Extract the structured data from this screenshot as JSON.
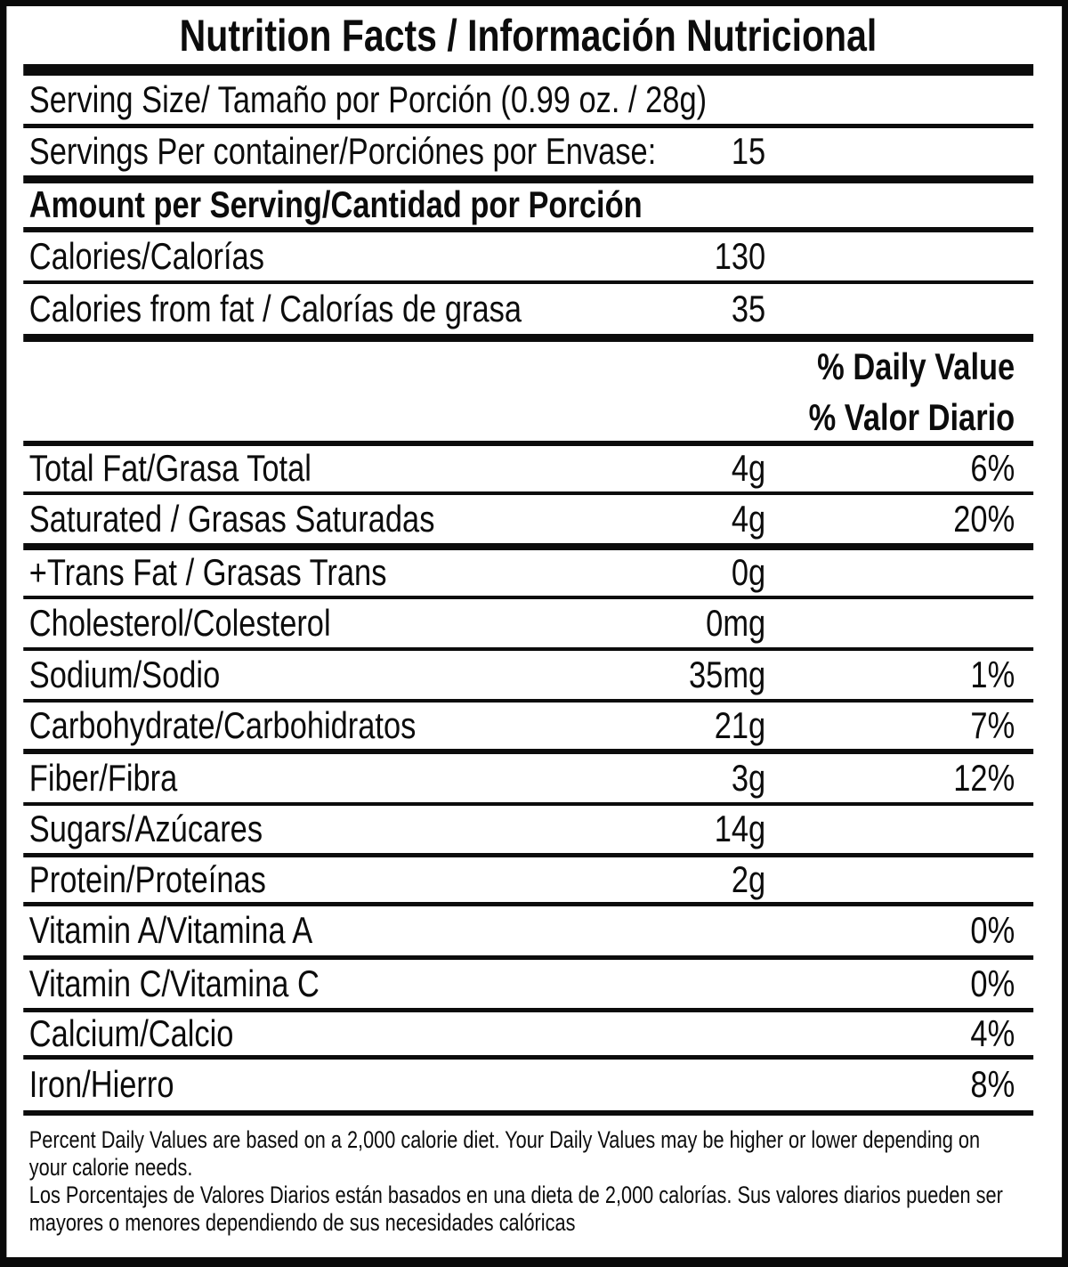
{
  "label": {
    "title": "Nutrition Facts / Información Nutricional",
    "serving_size": "Serving Size/ Tamaño por Porción  (0.99 oz. / 28g)",
    "servings_per_container": {
      "label": "Servings Per container/Porciónes por Envase:",
      "value": "15"
    },
    "amount_per_serving_header": "Amount per Serving/Cantidad por Porción",
    "calories": {
      "label": "Calories/Calorías",
      "value": "130"
    },
    "calories_from_fat": {
      "label": "Calories from fat / Calorías de grasa",
      "value": "35"
    },
    "daily_value_header": {
      "line1": "% Daily Value",
      "line2": "% Valor Diario"
    },
    "nutrients": [
      {
        "label": "Total Fat/Grasa Total",
        "amount": "4g",
        "percent": "6%"
      },
      {
        "label": "Saturated / Grasas Saturadas",
        "amount": "4g",
        "percent": "20%"
      },
      {
        "label": "+Trans Fat / Grasas Trans",
        "amount": "0g",
        "percent": ""
      },
      {
        "label": "Cholesterol/Colesterol",
        "amount": "0mg",
        "percent": ""
      },
      {
        "label": "Sodium/Sodio",
        "amount": "35mg",
        "percent": "1%"
      },
      {
        "label": "Carbohydrate/Carbohidratos",
        "amount": "21g",
        "percent": "7%"
      },
      {
        "label": "Fiber/Fibra",
        "amount": "3g",
        "percent": "12%"
      },
      {
        "label": "Sugars/Azúcares",
        "amount": "14g",
        "percent": ""
      },
      {
        "label": "Protein/Proteínas",
        "amount": "2g",
        "percent": ""
      },
      {
        "label": "Vitamin A/Vitamina A",
        "amount": "",
        "percent": "0%"
      },
      {
        "label": "Vitamin C/Vitamina C",
        "amount": "",
        "percent": "0%"
      },
      {
        "label": "Calcium/Calcio",
        "amount": "",
        "percent": "4%"
      },
      {
        "label": "Iron/Hierro",
        "amount": "",
        "percent": "8%"
      }
    ],
    "footnote_en": "Percent Daily Values are based on a 2,000 calorie diet. Your Daily Values may be higher or lower depending on your calorie needs.",
    "footnote_es": "Los Porcentajes de Valores Diarios están basados en una dieta de 2,000 calorías. Sus valores diarios pueden ser mayores o menores dependiendo de sus necesidades calóricas"
  },
  "colors": {
    "background": "#ffffff",
    "text": "#0c0c0c",
    "border": "#0a0a0a"
  }
}
